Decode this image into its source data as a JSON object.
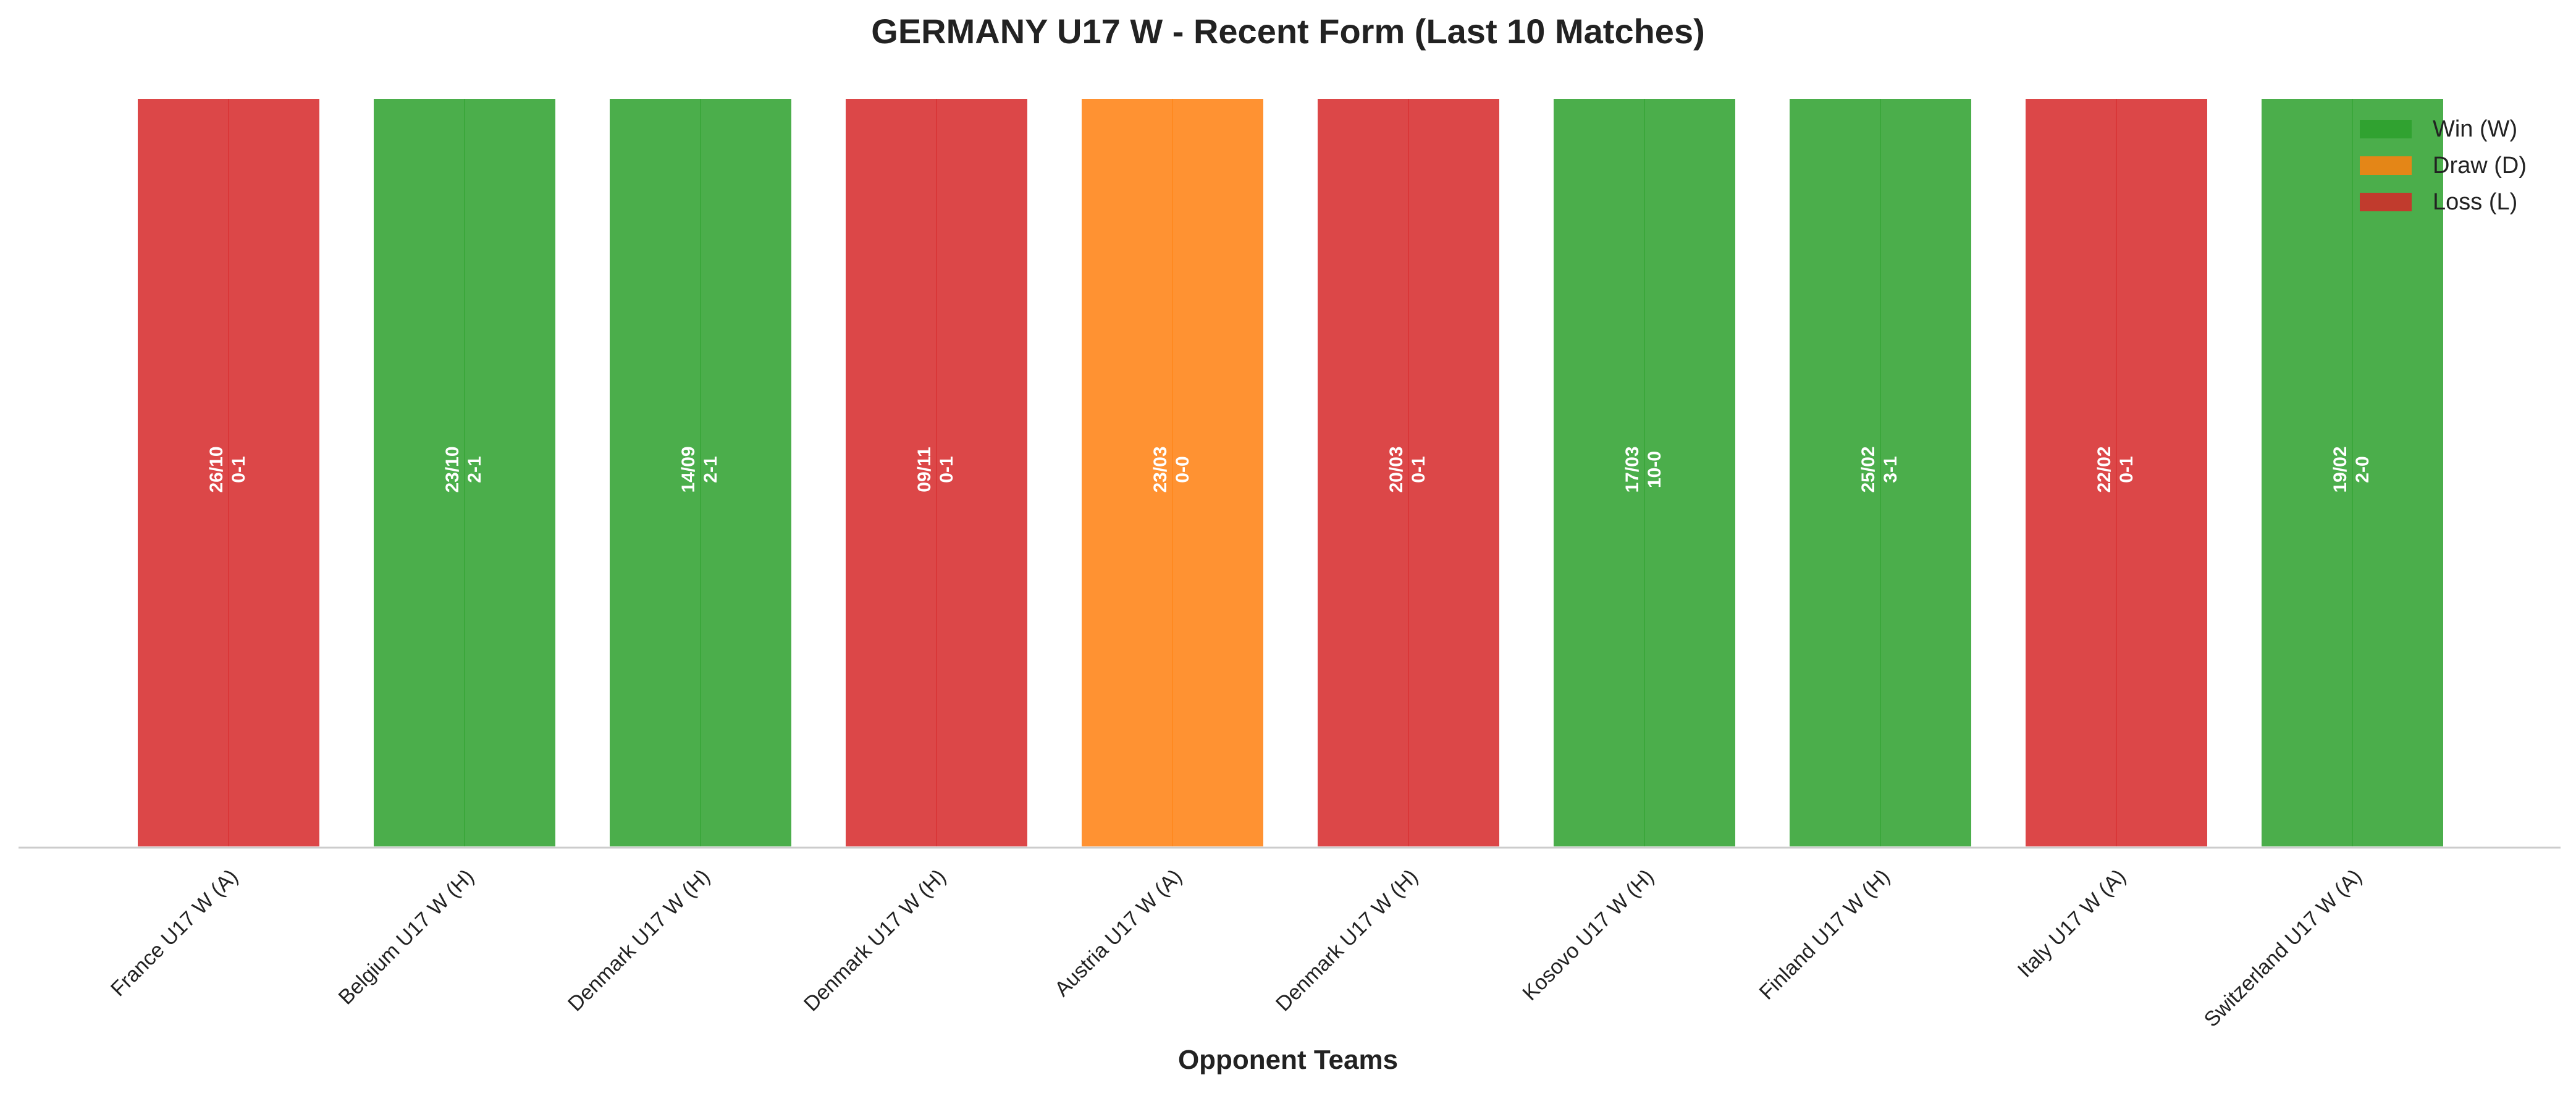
{
  "chart_data": {
    "type": "bar",
    "title": "GERMANY U17 W - Recent Form (Last 10 Matches)",
    "xlabel": "Opponent Teams",
    "ylabel": "",
    "categories": [
      "France U17 W (A)",
      "Belgium U17 W (H)",
      "Denmark U17 W (H)",
      "Denmark U17 W (H)",
      "Austria U17 W (A)",
      "Denmark U17 W (H)",
      "Kosovo U17 W (H)",
      "Finland U17 W (H)",
      "Italy U17 W (A)",
      "Switzerland U17 W (A)"
    ],
    "values": [
      1,
      1,
      1,
      1,
      1,
      1,
      1,
      1,
      1,
      1
    ],
    "results": [
      "L",
      "W",
      "W",
      "L",
      "D",
      "L",
      "W",
      "W",
      "L",
      "W"
    ],
    "dates": [
      "26/10",
      "23/10",
      "14/09",
      "09/11",
      "23/03",
      "20/03",
      "17/03",
      "25/02",
      "22/02",
      "19/02"
    ],
    "scores": [
      "0-1",
      "2-1",
      "2-1",
      "0-1",
      "0-0",
      "0-1",
      "10-0",
      "3-1",
      "0-1",
      "2-0"
    ],
    "ylim": [
      0,
      1
    ],
    "grid": false,
    "legend": {
      "placement": "top-right",
      "entries": [
        {
          "key": "W",
          "label": "Win (W)",
          "color": "#2ca02c"
        },
        {
          "key": "D",
          "label": "Draw (D)",
          "color": "#ff7f0e"
        },
        {
          "key": "L",
          "label": "Loss (L)",
          "color": "#d62728"
        }
      ]
    },
    "colors": {
      "W": "#2ca02c",
      "D": "#ff7f0e",
      "L": "#d62728"
    }
  }
}
